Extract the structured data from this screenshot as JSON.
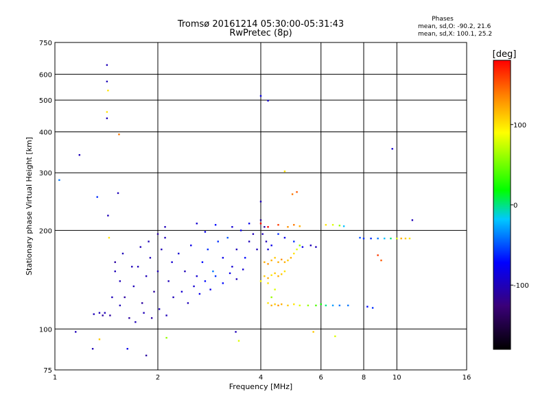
{
  "chart_data": {
    "type": "scatter",
    "title": "Tromsø 20161214 05:30:00-05:31:43",
    "subtitle": "RwPretec (8p)",
    "xlabel": "Frequency [MHz]",
    "ylabel": "Stationary phase Virtual Height [km]",
    "x_scale": "log",
    "y_scale": "log",
    "xlim": [
      1,
      16
    ],
    "ylim": [
      75,
      750
    ],
    "x_ticks": [
      1,
      2,
      4,
      6,
      8,
      10,
      16
    ],
    "y_ticks": [
      75,
      100,
      200,
      300,
      400,
      500,
      600,
      750
    ],
    "grid": true,
    "stats": {
      "header": "Phases",
      "line_o": "mean, sd,O: -90.2, 21.6",
      "line_x": "mean, sd,X: 100.1, 25.2"
    },
    "colorbar": {
      "label": "[deg]",
      "range": [
        -180,
        180
      ],
      "ticks": [
        100,
        0,
        -100
      ],
      "position": "right"
    },
    "series": [
      {
        "points": [
          [
            1.03,
            285,
            -40
          ],
          [
            1.15,
            98,
            -100
          ],
          [
            1.18,
            340,
            -100
          ],
          [
            1.33,
            253,
            -60
          ],
          [
            1.42,
            640,
            -100
          ],
          [
            1.42,
            570,
            -100
          ],
          [
            1.43,
            535,
            100
          ],
          [
            1.42,
            460,
            100
          ],
          [
            1.42,
            440,
            -100
          ],
          [
            1.43,
            222,
            -100
          ],
          [
            1.44,
            190,
            100
          ],
          [
            1.54,
            393,
            140
          ],
          [
            1.53,
            260,
            -100
          ],
          [
            1.29,
            87,
            -100
          ],
          [
            1.35,
            93,
            110
          ],
          [
            1.63,
            87,
            -80
          ],
          [
            1.85,
            83,
            -110
          ],
          [
            2.12,
            94,
            60
          ],
          [
            3.38,
            98,
            -100
          ],
          [
            3.45,
            92,
            80
          ],
          [
            4.0,
            515,
            -80
          ],
          [
            4.2,
            498,
            -90
          ],
          [
            9.7,
            355,
            -90
          ],
          [
            11.1,
            215,
            -100
          ],
          [
            4.0,
            245,
            -100
          ],
          [
            4.7,
            303,
            100
          ],
          [
            5.1,
            262,
            150
          ],
          [
            4.95,
            258,
            140
          ],
          [
            1.5,
            150,
            -100
          ],
          [
            1.55,
            140,
            -100
          ],
          [
            1.6,
            125,
            -110
          ],
          [
            1.7,
            135,
            -100
          ],
          [
            1.75,
            155,
            -100
          ],
          [
            1.8,
            120,
            -110
          ],
          [
            1.85,
            145,
            -100
          ],
          [
            1.9,
            165,
            -100
          ],
          [
            1.95,
            130,
            -110
          ],
          [
            2.0,
            150,
            -100
          ],
          [
            2.05,
            175,
            -100
          ],
          [
            2.1,
            190,
            -100
          ],
          [
            2.15,
            140,
            -100
          ],
          [
            2.2,
            160,
            -90
          ],
          [
            2.3,
            170,
            -90
          ],
          [
            2.4,
            150,
            -100
          ],
          [
            2.5,
            180,
            -80
          ],
          [
            2.6,
            145,
            -90
          ],
          [
            2.7,
            160,
            -70
          ],
          [
            2.8,
            175,
            -60
          ],
          [
            2.9,
            150,
            -40
          ],
          [
            3.0,
            185,
            -60
          ],
          [
            3.1,
            165,
            -80
          ],
          [
            3.2,
            190,
            -50
          ],
          [
            3.3,
            155,
            -90
          ],
          [
            3.4,
            175,
            -100
          ],
          [
            3.5,
            200,
            -80
          ],
          [
            3.6,
            165,
            -70
          ],
          [
            3.7,
            185,
            -100
          ],
          [
            3.8,
            195,
            -100
          ],
          [
            3.9,
            175,
            -100
          ],
          [
            1.45,
            110,
            -110
          ],
          [
            1.55,
            118,
            -100
          ],
          [
            1.65,
            108,
            -110
          ],
          [
            1.72,
            105,
            -100
          ],
          [
            1.82,
            112,
            -100
          ],
          [
            1.92,
            108,
            -110
          ],
          [
            2.02,
            115,
            -100
          ],
          [
            2.12,
            110,
            -100
          ],
          [
            2.22,
            125,
            -100
          ],
          [
            2.35,
            130,
            -90
          ],
          [
            2.45,
            120,
            -100
          ],
          [
            2.55,
            135,
            -90
          ],
          [
            2.65,
            128,
            -80
          ],
          [
            2.75,
            140,
            -70
          ],
          [
            2.85,
            132,
            -80
          ],
          [
            2.95,
            145,
            -60
          ],
          [
            3.1,
            138,
            -70
          ],
          [
            3.25,
            148,
            -80
          ],
          [
            3.4,
            142,
            -100
          ],
          [
            3.55,
            152,
            -90
          ],
          [
            1.3,
            111,
            -100
          ],
          [
            1.35,
            112,
            -100
          ],
          [
            1.38,
            110,
            -110
          ],
          [
            1.4,
            112,
            -100
          ],
          [
            1.47,
            125,
            -100
          ],
          [
            1.5,
            160,
            -110
          ],
          [
            1.58,
            170,
            -100
          ],
          [
            1.68,
            155,
            -100
          ],
          [
            1.78,
            178,
            -100
          ],
          [
            1.88,
            185,
            -100
          ],
          [
            2.0,
            195,
            -110
          ],
          [
            2.1,
            205,
            -100
          ],
          [
            2.6,
            210,
            -90
          ],
          [
            2.75,
            198,
            -80
          ],
          [
            2.95,
            208,
            -70
          ],
          [
            3.3,
            205,
            -90
          ],
          [
            3.7,
            210,
            -80
          ],
          [
            4.0,
            215,
            -110
          ],
          [
            4.05,
            195,
            -100
          ],
          [
            4.1,
            205,
            -110
          ],
          [
            4.15,
            185,
            -100
          ],
          [
            4.2,
            175,
            -90
          ],
          [
            4.3,
            180,
            -80
          ],
          [
            4.5,
            195,
            -60
          ],
          [
            4.7,
            190,
            -80
          ],
          [
            5.0,
            185,
            -60
          ],
          [
            5.3,
            178,
            -80
          ],
          [
            5.6,
            180,
            -100
          ],
          [
            5.8,
            178,
            -100
          ],
          [
            4.1,
            160,
            120
          ],
          [
            4.2,
            158,
            130
          ],
          [
            4.3,
            162,
            120
          ],
          [
            4.4,
            165,
            110
          ],
          [
            4.5,
            160,
            120
          ],
          [
            4.6,
            163,
            130
          ],
          [
            4.7,
            160,
            120
          ],
          [
            4.8,
            162,
            110
          ],
          [
            4.9,
            165,
            120
          ],
          [
            5.0,
            170,
            100
          ],
          [
            5.1,
            175,
            80
          ],
          [
            5.2,
            180,
            60
          ],
          [
            4.1,
            145,
            110
          ],
          [
            4.2,
            143,
            120
          ],
          [
            4.3,
            146,
            100
          ],
          [
            4.4,
            148,
            110
          ],
          [
            4.5,
            145,
            120
          ],
          [
            4.6,
            147,
            110
          ],
          [
            4.7,
            150,
            100
          ],
          [
            4.0,
            140,
            90
          ],
          [
            4.2,
            138,
            100
          ],
          [
            4.4,
            132,
            80
          ],
          [
            4.3,
            125,
            60
          ],
          [
            4.2,
            120,
            100
          ],
          [
            4.3,
            118,
            120
          ],
          [
            4.4,
            119,
            110
          ],
          [
            4.5,
            118,
            130
          ],
          [
            4.6,
            119,
            120
          ],
          [
            4.8,
            118,
            110
          ],
          [
            5.0,
            119,
            100
          ],
          [
            5.2,
            118,
            80
          ],
          [
            5.5,
            118,
            60
          ],
          [
            5.8,
            118,
            40
          ],
          [
            6.0,
            119,
            20
          ],
          [
            6.2,
            118,
            0
          ],
          [
            6.5,
            118,
            -30
          ],
          [
            6.8,
            118,
            -40
          ],
          [
            7.2,
            118,
            -40
          ],
          [
            8.2,
            117,
            -70
          ],
          [
            8.5,
            116,
            -60
          ],
          [
            4.0,
            210,
            180
          ],
          [
            4.2,
            205,
            180
          ],
          [
            4.5,
            208,
            160
          ],
          [
            4.8,
            205,
            130
          ],
          [
            5.0,
            208,
            140
          ],
          [
            5.2,
            206,
            120
          ],
          [
            6.2,
            208,
            100
          ],
          [
            6.5,
            208,
            80
          ],
          [
            6.8,
            207,
            60
          ],
          [
            7.0,
            206,
            -20
          ],
          [
            7.8,
            190,
            -50
          ],
          [
            8.0,
            189,
            -60
          ],
          [
            8.4,
            189,
            -60
          ],
          [
            8.8,
            189,
            -40
          ],
          [
            9.2,
            189,
            -20
          ],
          [
            9.6,
            189,
            0
          ],
          [
            10.0,
            189,
            80
          ],
          [
            10.3,
            189,
            120
          ],
          [
            10.6,
            189,
            110
          ],
          [
            10.9,
            189,
            100
          ],
          [
            8.8,
            168,
            160
          ],
          [
            9.0,
            162,
            150
          ],
          [
            5.7,
            98,
            110
          ],
          [
            6.6,
            95,
            80
          ]
        ]
      }
    ]
  }
}
